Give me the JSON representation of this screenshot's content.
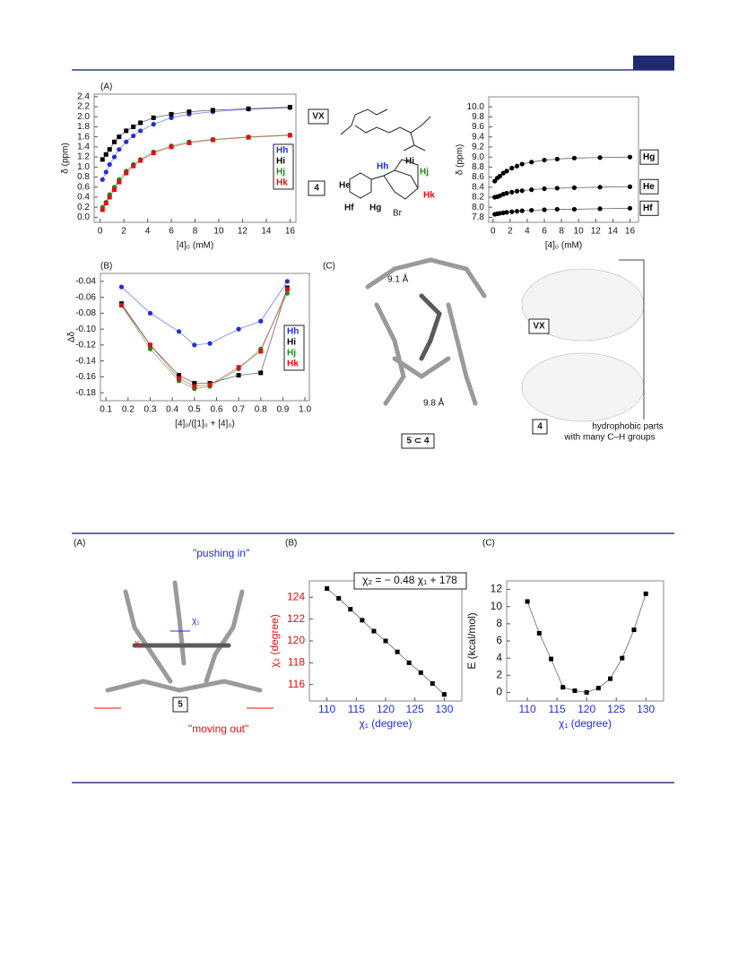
{
  "chart_data": [
    {
      "type": "scatter",
      "panel": "(A)",
      "xlabel": "[4]₀ (mM)",
      "ylabel": "δ (ppm)",
      "legend": "lower right",
      "x": [
        0.2,
        0.5,
        0.8,
        1.2,
        1.6,
        2.2,
        2.8,
        3.4,
        4.5,
        6,
        7.5,
        9.5,
        12.5,
        16
      ],
      "series": [
        {
          "name": "Hh",
          "color": "#1f2fd6",
          "marker": "circle",
          "values": [
            0.75,
            0.9,
            1.05,
            1.2,
            1.35,
            1.5,
            1.62,
            1.72,
            1.85,
            1.98,
            2.05,
            2.1,
            2.15,
            2.18
          ]
        },
        {
          "name": "Hi",
          "color": "#000000",
          "marker": "square",
          "values": [
            1.15,
            1.25,
            1.35,
            1.5,
            1.6,
            1.72,
            1.8,
            1.88,
            1.98,
            2.05,
            2.1,
            2.13,
            2.16,
            2.19
          ]
        },
        {
          "name": "Hj",
          "color": "#1a8a1a",
          "marker": "circle",
          "values": [
            0.2,
            0.3,
            0.45,
            0.6,
            0.75,
            0.92,
            1.05,
            1.15,
            1.3,
            1.42,
            1.5,
            1.55,
            1.6,
            1.64
          ]
        },
        {
          "name": "Hk",
          "color": "#e01010",
          "marker": "square",
          "values": [
            0.15,
            0.28,
            0.4,
            0.55,
            0.7,
            0.88,
            1.02,
            1.13,
            1.28,
            1.4,
            1.48,
            1.54,
            1.59,
            1.63
          ]
        }
      ],
      "xlim": [
        -0.5,
        16.5
      ],
      "ylim": [
        -0.1,
        2.45
      ],
      "xticks": [
        0,
        2,
        4,
        6,
        8,
        10,
        12,
        14,
        16
      ],
      "yticks": [
        {
          "value": 0,
          "label": "0.0"
        },
        {
          "value": 0.2,
          "label": "0.2"
        },
        {
          "value": 0.4,
          "label": "0.4"
        },
        {
          "value": 0.6,
          "label": "0.6"
        },
        {
          "value": 0.8,
          "label": "0.8"
        },
        {
          "value": 1,
          "label": "1.0"
        },
        {
          "value": 1.2,
          "label": "1.2"
        },
        {
          "value": 1.4,
          "label": "1.4"
        },
        {
          "value": 1.6,
          "label": "1.6"
        },
        {
          "value": 1.8,
          "label": "1.8"
        },
        {
          "value": 2,
          "label": "2.0"
        },
        {
          "value": 2.2,
          "label": "2.2"
        },
        {
          "value": 2.4,
          "label": "2.4"
        }
      ]
    },
    {
      "type": "scatter",
      "xlabel": "[4]₀ (mM)",
      "ylabel": "δ (ppm)",
      "legend": "right",
      "x": [
        0.2,
        0.5,
        0.8,
        1.2,
        1.6,
        2.2,
        2.8,
        3.4,
        4.5,
        6,
        7.5,
        9.5,
        12.5,
        16
      ],
      "series": [
        {
          "name": "Hg",
          "color": "#000000",
          "marker": "circle",
          "values": [
            8.52,
            8.58,
            8.62,
            8.68,
            8.72,
            8.78,
            8.82,
            8.86,
            8.9,
            8.94,
            8.96,
            8.98,
            8.99,
            9.0
          ]
        },
        {
          "name": "He",
          "color": "#000000",
          "marker": "circle",
          "values": [
            8.2,
            8.21,
            8.23,
            8.26,
            8.28,
            8.3,
            8.32,
            8.33,
            8.35,
            8.37,
            8.38,
            8.39,
            8.4,
            8.41
          ]
        },
        {
          "name": "Hf",
          "color": "#000000",
          "marker": "circle",
          "values": [
            7.86,
            7.87,
            7.88,
            7.89,
            7.9,
            7.91,
            7.92,
            7.93,
            7.94,
            7.95,
            7.96,
            7.96,
            7.97,
            7.98
          ]
        }
      ],
      "xlim": [
        -0.5,
        17
      ],
      "ylim": [
        7.7,
        10.2
      ],
      "xticks": [
        0,
        2,
        4,
        6,
        8,
        10,
        12,
        14,
        16
      ],
      "yticks": [
        {
          "value": 7.8,
          "label": "7.8"
        },
        {
          "value": 8,
          "label": "8.0"
        },
        {
          "value": 8.2,
          "label": "8.2"
        },
        {
          "value": 8.4,
          "label": "8.4"
        },
        {
          "value": 8.6,
          "label": "8.6"
        },
        {
          "value": 8.8,
          "label": "8.8"
        },
        {
          "value": 9,
          "label": "9.0"
        },
        {
          "value": 9.2,
          "label": "9.2"
        },
        {
          "value": 9.4,
          "label": "9.4"
        },
        {
          "value": 9.6,
          "label": "9.6"
        },
        {
          "value": 9.8,
          "label": "9.8"
        },
        {
          "value": 10,
          "label": "10.0"
        }
      ]
    },
    {
      "type": "scatter",
      "panel": "(B)",
      "xlabel": "[4]₀/([1]₀ + [4]₀)",
      "ylabel": "Δδ",
      "legend": "right",
      "x": [
        0.17,
        0.3,
        0.43,
        0.5,
        0.57,
        0.7,
        0.8,
        0.92
      ],
      "series": [
        {
          "name": "Hh",
          "color": "#1f2fd6",
          "marker": "circle",
          "values": [
            -0.047,
            -0.08,
            -0.103,
            -0.12,
            -0.118,
            -0.1,
            -0.09,
            -0.04
          ]
        },
        {
          "name": "Hi",
          "color": "#000000",
          "marker": "square",
          "values": [
            -0.068,
            -0.12,
            -0.158,
            -0.168,
            -0.168,
            -0.158,
            -0.155,
            -0.048
          ]
        },
        {
          "name": "Hj",
          "color": "#1a8a1a",
          "marker": "circle",
          "values": [
            -0.07,
            -0.125,
            -0.165,
            -0.175,
            -0.172,
            -0.15,
            -0.125,
            -0.055
          ]
        },
        {
          "name": "Hk",
          "color": "#e01010",
          "marker": "square",
          "values": [
            -0.07,
            -0.12,
            -0.162,
            -0.172,
            -0.17,
            -0.148,
            -0.128,
            -0.05
          ]
        }
      ],
      "xlim": [
        0.075,
        1.02
      ],
      "ylim": [
        -0.19,
        -0.03
      ],
      "xticks": [
        {
          "value": 0.1,
          "label": "0.1"
        },
        {
          "value": 0.2,
          "label": "0.2"
        },
        {
          "value": 0.3,
          "label": "0.3"
        },
        {
          "value": 0.4,
          "label": "0.4"
        },
        {
          "value": 0.5,
          "label": "0.5"
        },
        {
          "value": 0.6,
          "label": "0.6"
        },
        {
          "value": 0.7,
          "label": "0.7"
        },
        {
          "value": 0.8,
          "label": "0.8"
        },
        {
          "value": 0.9,
          "label": "0.9"
        },
        {
          "value": 1,
          "label": "1.0"
        }
      ],
      "yticks": [
        {
          "value": -0.04,
          "label": "-0.04"
        },
        {
          "value": -0.06,
          "label": "-0.06"
        },
        {
          "value": -0.08,
          "label": "-0.08"
        },
        {
          "value": -0.1,
          "label": "-0.10"
        },
        {
          "value": -0.12,
          "label": "-0.12"
        },
        {
          "value": -0.14,
          "label": "-0.14"
        },
        {
          "value": -0.16,
          "label": "-0.16"
        },
        {
          "value": -0.18,
          "label": "-0.18"
        }
      ]
    },
    {
      "type": "scatter",
      "panel": "(B)",
      "xlabel": "χ₁ (degree)",
      "ylabel": "χ₂ (degree)",
      "annotation": "χ₂ = − 0.48 χ₁ + 178",
      "x": [
        110,
        112,
        114,
        116,
        118,
        120,
        122,
        124,
        126,
        128,
        130
      ],
      "series": [
        {
          "color": "#000000",
          "marker": "square",
          "values": [
            124.8,
            123.9,
            122.9,
            121.9,
            120.9,
            120.0,
            119.0,
            118.0,
            117.1,
            116.1,
            115.1
          ]
        }
      ],
      "xlim": [
        107,
        133
      ],
      "ylim": [
        114.5,
        125.5
      ],
      "xticks": [
        110,
        115,
        120,
        125,
        130
      ],
      "yticks": [
        116,
        118,
        120,
        122,
        124
      ]
    },
    {
      "type": "scatter",
      "panel": "(C)",
      "xlabel": "χ₁ (degree)",
      "ylabel": "E (kcal/mol)",
      "x": [
        110,
        112,
        114,
        116,
        118,
        120,
        122,
        124,
        126,
        128,
        130
      ],
      "series": [
        {
          "color": "#000000",
          "marker": "square",
          "values": [
            10.6,
            6.9,
            3.9,
            0.6,
            0.2,
            0.0,
            0.5,
            1.6,
            4.0,
            7.3,
            11.5
          ]
        }
      ],
      "xlim": [
        106.5,
        133
      ],
      "ylim": [
        -1,
        13
      ],
      "xticks": [
        110,
        115,
        120,
        125,
        130
      ],
      "yticks": [
        0,
        2,
        4,
        6,
        8,
        10,
        12
      ]
    }
  ],
  "figure_text": {
    "vx": "VX",
    "compound4": "4",
    "He": "He",
    "Hf": "Hf",
    "Hg": "Hg",
    "Hh": "Hh",
    "Hi": "Hi",
    "Hj": "Hj",
    "Hk": "Hk",
    "Br": "Br",
    "panelC_top": "(C)",
    "dist1": "9.1 Å",
    "dist2": "9.8 Å",
    "complex": "5 ⊂ 4",
    "vx2": "VX",
    "compound4b": "4",
    "hydro1": "hydrophobic parts",
    "hydro2": "with many C–H groups",
    "panelA_bottom": "(A)",
    "pushing": "\"pushing in\"",
    "moving": "\"moving out\"",
    "compound5": "5",
    "chi1": "χ₁",
    "chi2": "χ₂"
  }
}
